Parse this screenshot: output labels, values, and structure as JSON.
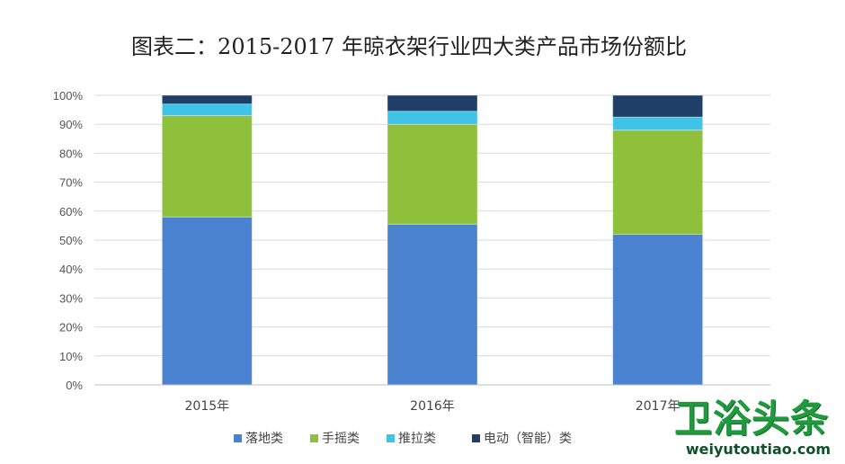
{
  "chart_data": {
    "type": "stacked_bar_percent",
    "title": "图表二：2015-2017 年晾衣架行业四大类产品市场份额比",
    "categories": [
      "2015年",
      "2016年",
      "2017年"
    ],
    "ylim": [
      0,
      100
    ],
    "yticks": [
      "0%",
      "10%",
      "20%",
      "30%",
      "40%",
      "50%",
      "60%",
      "70%",
      "80%",
      "90%",
      "100%"
    ],
    "grid": true,
    "legend_position": "bottom",
    "series": [
      {
        "name": "落地类",
        "color": "#4a82cf",
        "values": [
          58,
          55.5,
          52
        ]
      },
      {
        "name": "手摇类",
        "color": "#8fc03c",
        "values": [
          35,
          34.5,
          36
        ]
      },
      {
        "name": "推拉类",
        "color": "#3fc4e8",
        "values": [
          4,
          4.5,
          4.5
        ]
      },
      {
        "name": "电动（智能）类",
        "color": "#1f3f66",
        "values": [
          3,
          5.5,
          7.5
        ]
      }
    ]
  },
  "watermark": {
    "title": "卫浴头条",
    "url": "weiyutoutiao.com"
  }
}
